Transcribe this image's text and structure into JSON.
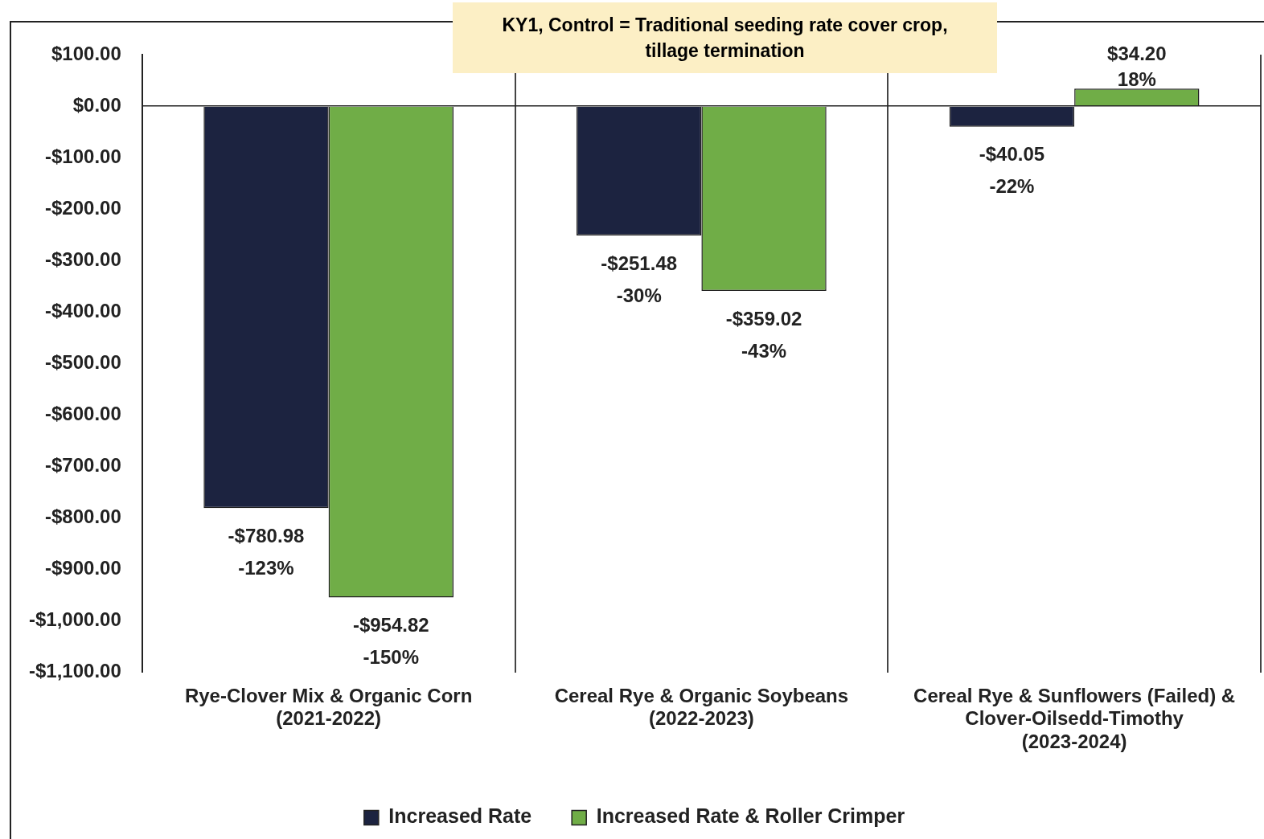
{
  "chart_data": {
    "type": "bar",
    "title": "KY1, Control = Traditional seeding rate cover crop,\ntillage termination",
    "categories": [
      "Rye-Clover Mix & Organic Corn\n(2021-2022)",
      "Cereal Rye & Organic Soybeans\n(2022-2023)",
      "Cereal Rye & Sunflowers (Failed) &\nClover-Oilsedd-Timothy\n(2023-2024)"
    ],
    "series": [
      {
        "name": "Increased Rate",
        "color": "#1c2340",
        "values": [
          -780.98,
          -251.48,
          -40.05
        ],
        "value_labels": [
          "-$780.98\n-123%",
          "-$251.48\n-30%",
          "-$40.05\n-22%"
        ]
      },
      {
        "name": "Increased Rate & Roller Crimper",
        "color": "#70ad47",
        "values": [
          -954.82,
          -359.02,
          34.2
        ],
        "value_labels": [
          "-$954.82\n-150%",
          "-$359.02\n-43%",
          "$34.20\n18%"
        ]
      }
    ],
    "ylim": [
      -1100,
      100
    ],
    "yticks": [
      {
        "value": 100,
        "label": "$100.00"
      },
      {
        "value": 0,
        "label": "$0.00"
      },
      {
        "value": -100,
        "label": "-$100.00"
      },
      {
        "value": -200,
        "label": "-$200.00"
      },
      {
        "value": -300,
        "label": "-$300.00"
      },
      {
        "value": -400,
        "label": "-$400.00"
      },
      {
        "value": -500,
        "label": "-$500.00"
      },
      {
        "value": -600,
        "label": "-$600.00"
      },
      {
        "value": -700,
        "label": "-$700.00"
      },
      {
        "value": -800,
        "label": "-$800.00"
      },
      {
        "value": -900,
        "label": "-$900.00"
      },
      {
        "value": -1000,
        "label": "-$1,000.00"
      },
      {
        "value": -1100,
        "label": "-$1,100.00"
      }
    ],
    "grid": "x",
    "legend": "bottom"
  }
}
